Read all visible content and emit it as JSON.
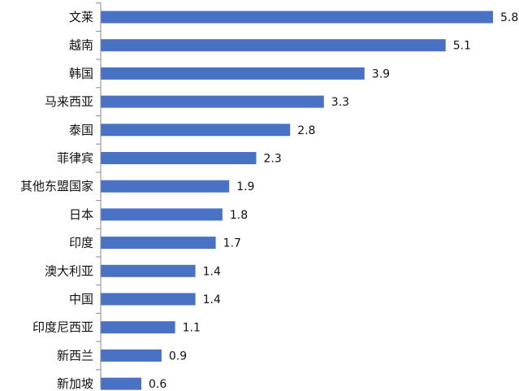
{
  "chart_data": {
    "type": "bar",
    "orientation": "horizontal",
    "title": "",
    "xlabel": "",
    "ylabel": "",
    "categories": [
      "文莱",
      "越南",
      "韩国",
      "马来西亚",
      "泰国",
      "菲律宾",
      "其他东盟国家",
      "日本",
      "印度",
      "澳大利亚",
      "中国",
      "印度尼西亚",
      "新西兰",
      "新加坡"
    ],
    "values": [
      5.8,
      5.1,
      3.9,
      3.3,
      2.8,
      2.3,
      1.9,
      1.8,
      1.7,
      1.4,
      1.4,
      1.1,
      0.9,
      0.6
    ],
    "value_labels": [
      "5.8",
      "5.1",
      "3.9",
      "3.3",
      "2.8",
      "2.3",
      "1.9",
      "1.8",
      "1.7",
      "1.4",
      "1.4",
      "1.1",
      "0.9",
      "0.6"
    ],
    "xlim": [
      0,
      5.8
    ],
    "grid": false,
    "legend": "none",
    "bar_color": "#4A72C4",
    "axis_color": "#888888"
  }
}
